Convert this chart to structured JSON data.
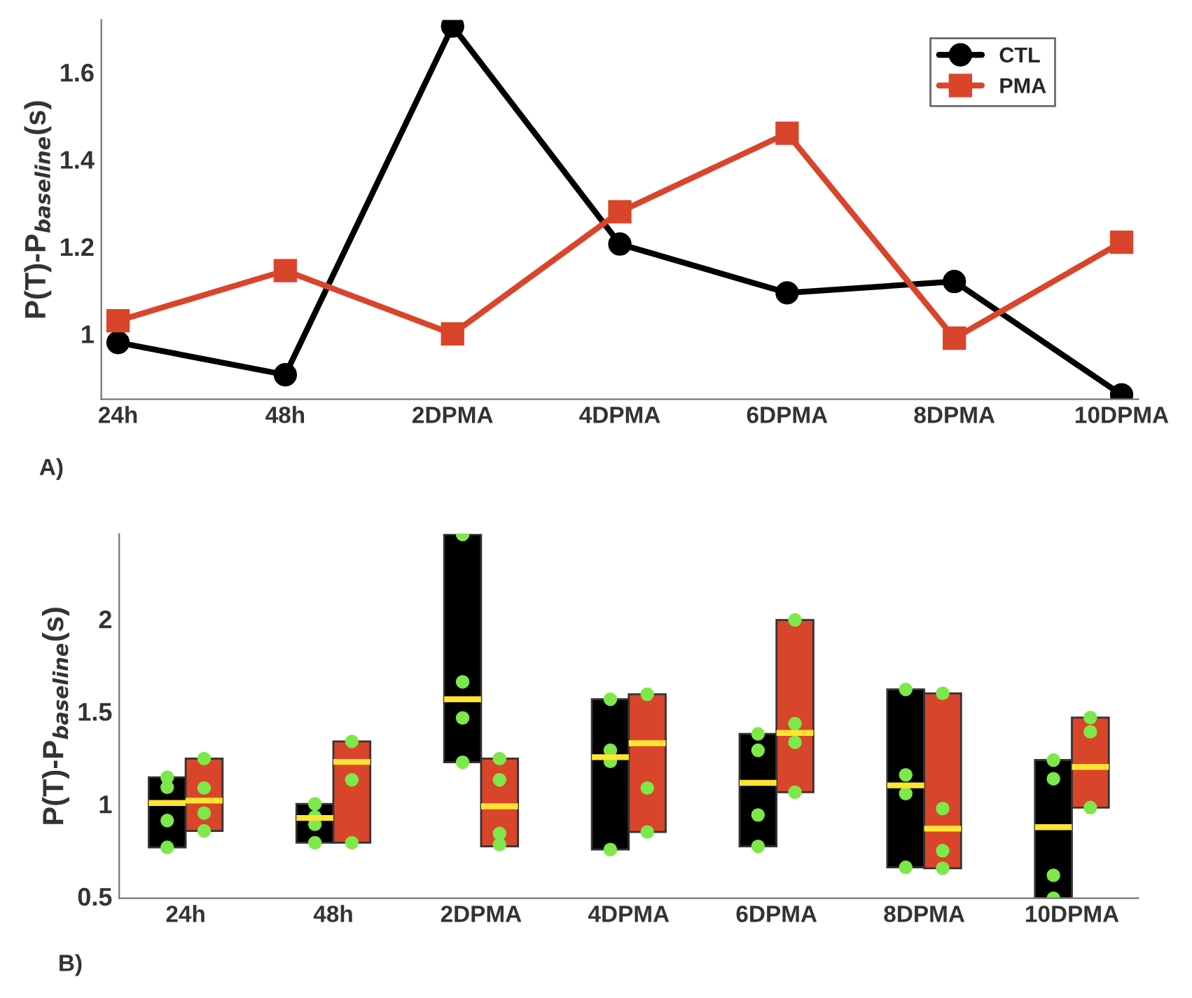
{
  "chart_data": [
    {
      "type": "line",
      "ylabel": "P(T)-P$_{baseline}$(s)",
      "categories": [
        "24h",
        "48h",
        "2DPMA",
        "4DPMA",
        "6DPMA",
        "8DPMA",
        "10DPMA"
      ],
      "series": [
        {
          "name": "CTL",
          "color": "#000000",
          "marker": "circle",
          "values": [
            0.98,
            0.906,
            1.706,
            1.206,
            1.094,
            1.12,
            0.86
          ]
        },
        {
          "name": "PMA",
          "color": "#d9452b",
          "marker": "square",
          "values": [
            1.03,
            1.145,
            1.0,
            1.28,
            1.46,
            0.99,
            1.21
          ]
        }
      ],
      "ylim": [
        0.85,
        1.72
      ],
      "yticks": [
        1,
        1.2,
        1.4,
        1.6
      ],
      "grid": false,
      "legend": "top right",
      "line_style": "solid",
      "annotations": [
        "A)"
      ]
    },
    {
      "type": "box",
      "ylabel": "P(T)-P$_{baseline}$(s)",
      "categories": [
        "24h",
        "48h",
        "2DPMA",
        "4DPMA",
        "6DPMA",
        "8DPMA",
        "10DPMA"
      ],
      "series": [
        {
          "color": "#000000",
          "boxes": [
            {
              "low": 0.765,
              "q1": 0.765,
              "median": 1.005,
              "q3": 1.144,
              "high": 1.144,
              "outliers": [
                1.144,
                1.09,
                0.91,
                0.765
              ]
            },
            {
              "low": 0.79,
              "q1": 0.79,
              "median": 0.924,
              "q3": 1.0,
              "high": 1.0,
              "outliers": [
                1.0,
                0.93,
                0.89,
                0.79
              ]
            },
            {
              "low": 1.225,
              "q1": 1.225,
              "median": 1.566,
              "q3": 2.457,
              "high": 2.457,
              "outliers": [
                2.457,
                1.66,
                1.465,
                1.225
              ]
            },
            {
              "low": 0.753,
              "q1": 0.753,
              "median": 1.253,
              "q3": 1.566,
              "high": 1.566,
              "outliers": [
                1.566,
                1.29,
                1.23,
                0.753
              ]
            },
            {
              "low": 0.77,
              "q1": 0.77,
              "median": 1.114,
              "q3": 1.379,
              "high": 1.379,
              "outliers": [
                1.379,
                1.29,
                0.94,
                0.77
              ]
            },
            {
              "low": 0.657,
              "q1": 0.657,
              "median": 1.1,
              "q3": 1.619,
              "high": 1.619,
              "outliers": [
                1.619,
                1.157,
                1.056,
                0.657
              ]
            },
            {
              "low": 0.49,
              "q1": 0.49,
              "median": 0.874,
              "q3": 1.237,
              "high": 1.237,
              "outliers": [
                1.237,
                1.136,
                0.614,
                0.49
              ]
            }
          ]
        },
        {
          "color": "#d9452b",
          "boxes": [
            {
              "low": 0.854,
              "q1": 0.854,
              "median": 1.018,
              "q3": 1.245,
              "high": 1.245,
              "outliers": [
                1.245,
                1.086,
                0.95,
                0.854
              ]
            },
            {
              "low": 0.79,
              "q1": 0.79,
              "median": 1.227,
              "q3": 1.338,
              "high": 1.338,
              "outliers": [
                1.338,
                1.13,
                0.79
              ]
            },
            {
              "low": 0.77,
              "q1": 0.77,
              "median": 0.987,
              "q3": 1.245,
              "high": 1.245,
              "outliers": [
                1.245,
                1.13,
                0.84,
                0.78
              ]
            },
            {
              "low": 0.848,
              "q1": 0.848,
              "median": 1.328,
              "q3": 1.593,
              "high": 1.593,
              "outliers": [
                1.593,
                1.086,
                0.848
              ]
            },
            {
              "low": 1.063,
              "q1": 1.063,
              "median": 1.384,
              "q3": 1.995,
              "high": 1.995,
              "outliers": [
                1.995,
                1.434,
                1.333,
                1.063
              ]
            },
            {
              "low": 0.652,
              "q1": 0.652,
              "median": 0.866,
              "q3": 1.598,
              "high": 1.598,
              "outliers": [
                1.598,
                0.975,
                0.747,
                0.652
              ]
            },
            {
              "low": 0.98,
              "q1": 0.98,
              "median": 1.2,
              "q3": 1.467,
              "high": 1.467,
              "outliers": [
                1.467,
                1.39,
                0.98
              ]
            }
          ]
        }
      ],
      "ylim": [
        0.49,
        2.46
      ],
      "yticks": [
        0.5,
        1,
        1.5,
        2
      ],
      "grid": false,
      "annotations": [
        "B)"
      ]
    }
  ]
}
